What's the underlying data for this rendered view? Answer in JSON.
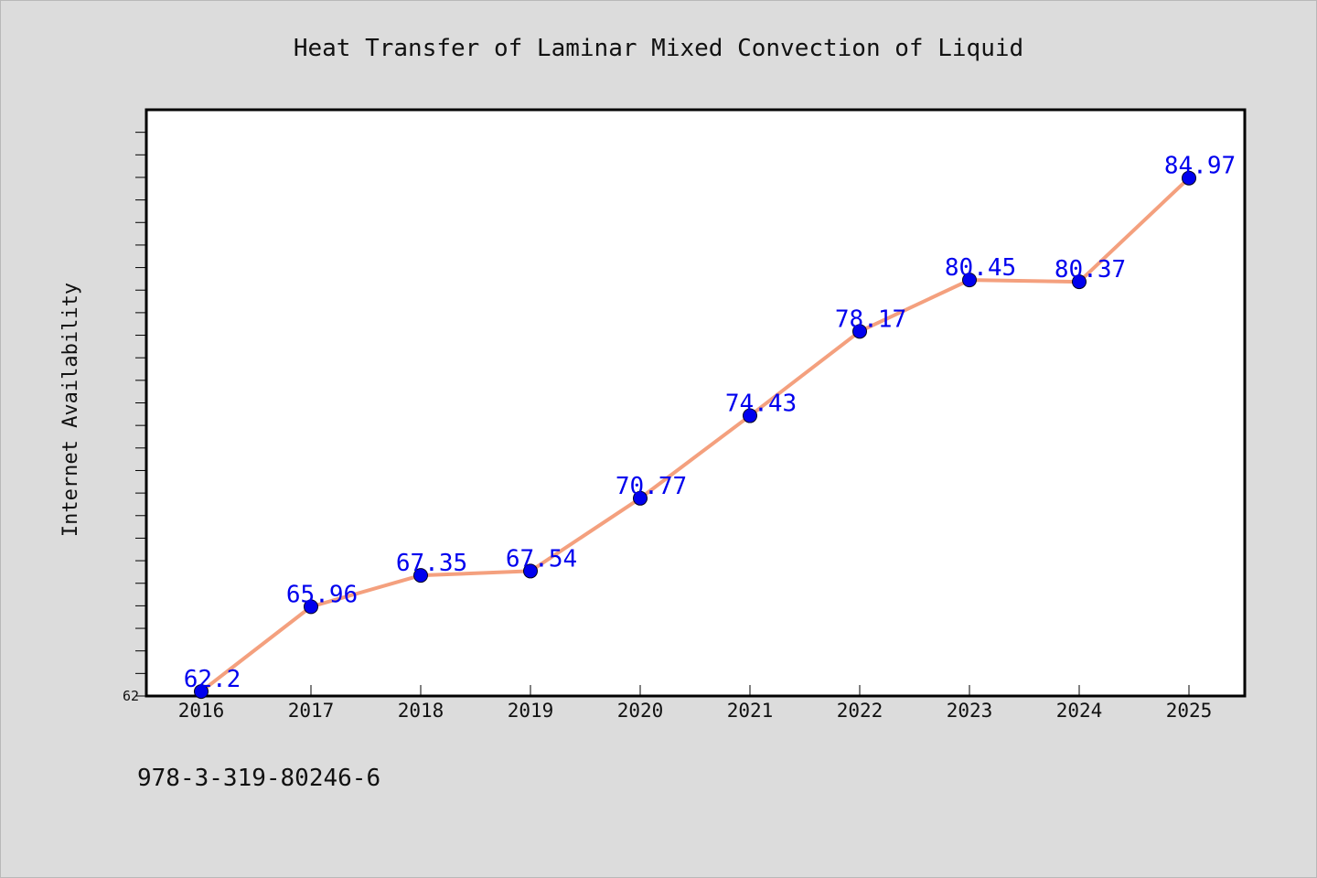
{
  "chart_data": {
    "type": "line",
    "title": "Heat Transfer of Laminar Mixed Convection of Liquid",
    "xlabel": "",
    "ylabel": "Internet Availability",
    "categories": [
      "2016",
      "2017",
      "2018",
      "2019",
      "2020",
      "2021",
      "2022",
      "2023",
      "2024",
      "2025"
    ],
    "series": [
      {
        "values": [
          62.2,
          65.96,
          67.35,
          67.54,
          70.77,
          74.43,
          78.17,
          80.45,
          80.37,
          84.97
        ]
      }
    ],
    "data_labels": [
      "62.2",
      "65.96",
      "67.35",
      "67.54",
      "70.77",
      "74.43",
      "78.17",
      "80.45",
      "80.37",
      "84.97"
    ],
    "y_tick_labels": [
      "62"
    ],
    "ylim": [
      62,
      88
    ],
    "grid": false,
    "legend": "none",
    "colors": {
      "line": "#f4a07e",
      "marker": "#0000ee",
      "data_label": "#0000ee",
      "background": "#dcdcdc",
      "plot_background": "#ffffff"
    }
  },
  "footer": {
    "isbn": "978-3-319-80246-6"
  }
}
